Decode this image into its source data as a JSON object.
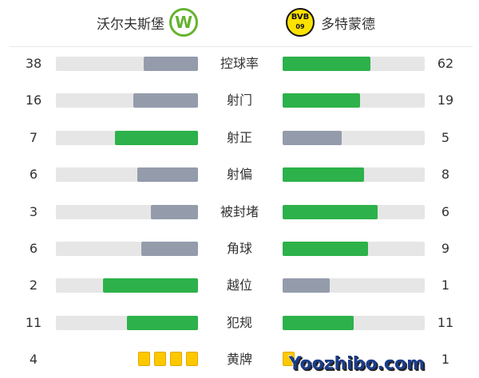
{
  "home": {
    "name": "沃尔夫斯堡",
    "logo": "W"
  },
  "away": {
    "name": "多特蒙德",
    "logo_top": "BVB",
    "logo_bottom": "09"
  },
  "colors": {
    "high": "#2db14a",
    "low": "#949cac",
    "track": "#e6e6e6",
    "card": "#fdc800"
  },
  "stats": [
    {
      "label": "控球率",
      "home": 38,
      "away": 62
    },
    {
      "label": "射门",
      "home": 16,
      "away": 19
    },
    {
      "label": "射正",
      "home": 7,
      "away": 5
    },
    {
      "label": "射偏",
      "home": 6,
      "away": 8
    },
    {
      "label": "被封堵",
      "home": 3,
      "away": 6
    },
    {
      "label": "角球",
      "home": 6,
      "away": 9
    },
    {
      "label": "越位",
      "home": 2,
      "away": 1
    },
    {
      "label": "犯规",
      "home": 11,
      "away": 11
    }
  ],
  "yellow_cards": {
    "label": "黄牌",
    "home": 4,
    "away": 1
  },
  "watermark": "Yoozhibo.com"
}
